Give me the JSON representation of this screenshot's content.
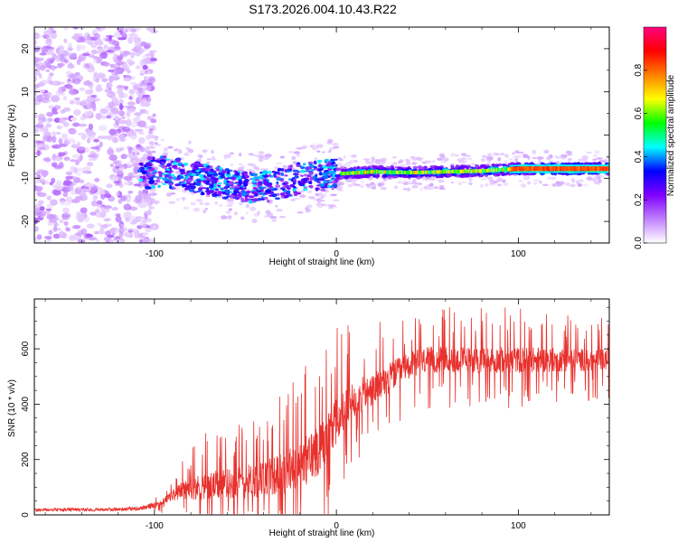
{
  "title": "S173.2026.004.10.43.R22",
  "colors": {
    "snr_line": "#e8302c",
    "frame": "#000000",
    "background": "#ffffff"
  },
  "chart_data": [
    {
      "type": "heatmap",
      "name": "spectrogram",
      "xlabel": "Height of straight line (km)",
      "ylabel": "Frequency (Hz)",
      "xlim": [
        -166,
        150
      ],
      "ylim": [
        -25,
        25
      ],
      "xticks": [
        -100,
        0,
        100
      ],
      "yticks": [
        -20,
        -10,
        0,
        10,
        20
      ],
      "colorbar": {
        "label": "Normalized spectral amplitude",
        "range": [
          0,
          1
        ],
        "ticks": [
          "0.0",
          "0.2",
          "0.4",
          "0.6",
          "0.8"
        ],
        "colors": [
          "#ffffff",
          "#c080ff",
          "#7f00ff",
          "#0000ff",
          "#00ffff",
          "#00ff00",
          "#ffff00",
          "#ff8000",
          "#ff0000",
          "#ff0080"
        ]
      },
      "ridge": {
        "x": [
          -108,
          -95,
          -80,
          -65,
          -50,
          -35,
          -20,
          -10,
          0,
          20,
          40,
          60,
          80,
          100,
          120,
          150
        ],
        "freq": [
          -9,
          -8.5,
          -9.5,
          -11,
          -12,
          -12,
          -10,
          -9.5,
          -9,
          -8.5,
          -8.7,
          -8.5,
          -8.3,
          -7.8,
          -7.8,
          -7.8
        ],
        "amplitude": [
          0.3,
          0.35,
          0.3,
          0.3,
          0.3,
          0.3,
          0.35,
          0.4,
          0.45,
          0.55,
          0.5,
          0.55,
          0.55,
          0.7,
          0.75,
          0.8
        ]
      },
      "noise_region": {
        "x_range": [
          -166,
          -100
        ],
        "amplitude": 0.12
      }
    },
    {
      "type": "line",
      "name": "snr",
      "xlabel": "Height of straight line (km)",
      "ylabel": "SNR (10 * v/v)",
      "xlim": [
        -166,
        150
      ],
      "ylim": [
        0,
        780
      ],
      "xticks": [
        -100,
        0,
        100
      ],
      "yticks": [
        0,
        200,
        400,
        600
      ],
      "series": [
        {
          "name": "SNR",
          "envelope": {
            "x": [
              -166,
              -120,
              -105,
              -95,
              -85,
              -75,
              -60,
              -50,
              -40,
              -30,
              -20,
              -10,
              0,
              10,
              20,
              30,
              40,
              50,
              70,
              100,
              130,
              150
            ],
            "base": [
              18,
              20,
              25,
              50,
              90,
              100,
              110,
              120,
              130,
              150,
              170,
              240,
              340,
              420,
              450,
              500,
              540,
              560,
              560,
              560,
              560,
              560
            ],
            "spike": [
              12,
              12,
              15,
              40,
              100,
              160,
              190,
              210,
              220,
              250,
              300,
              330,
              280,
              230,
              200,
              180,
              160,
              160,
              160,
              160,
              140,
              130
            ]
          }
        }
      ]
    }
  ]
}
